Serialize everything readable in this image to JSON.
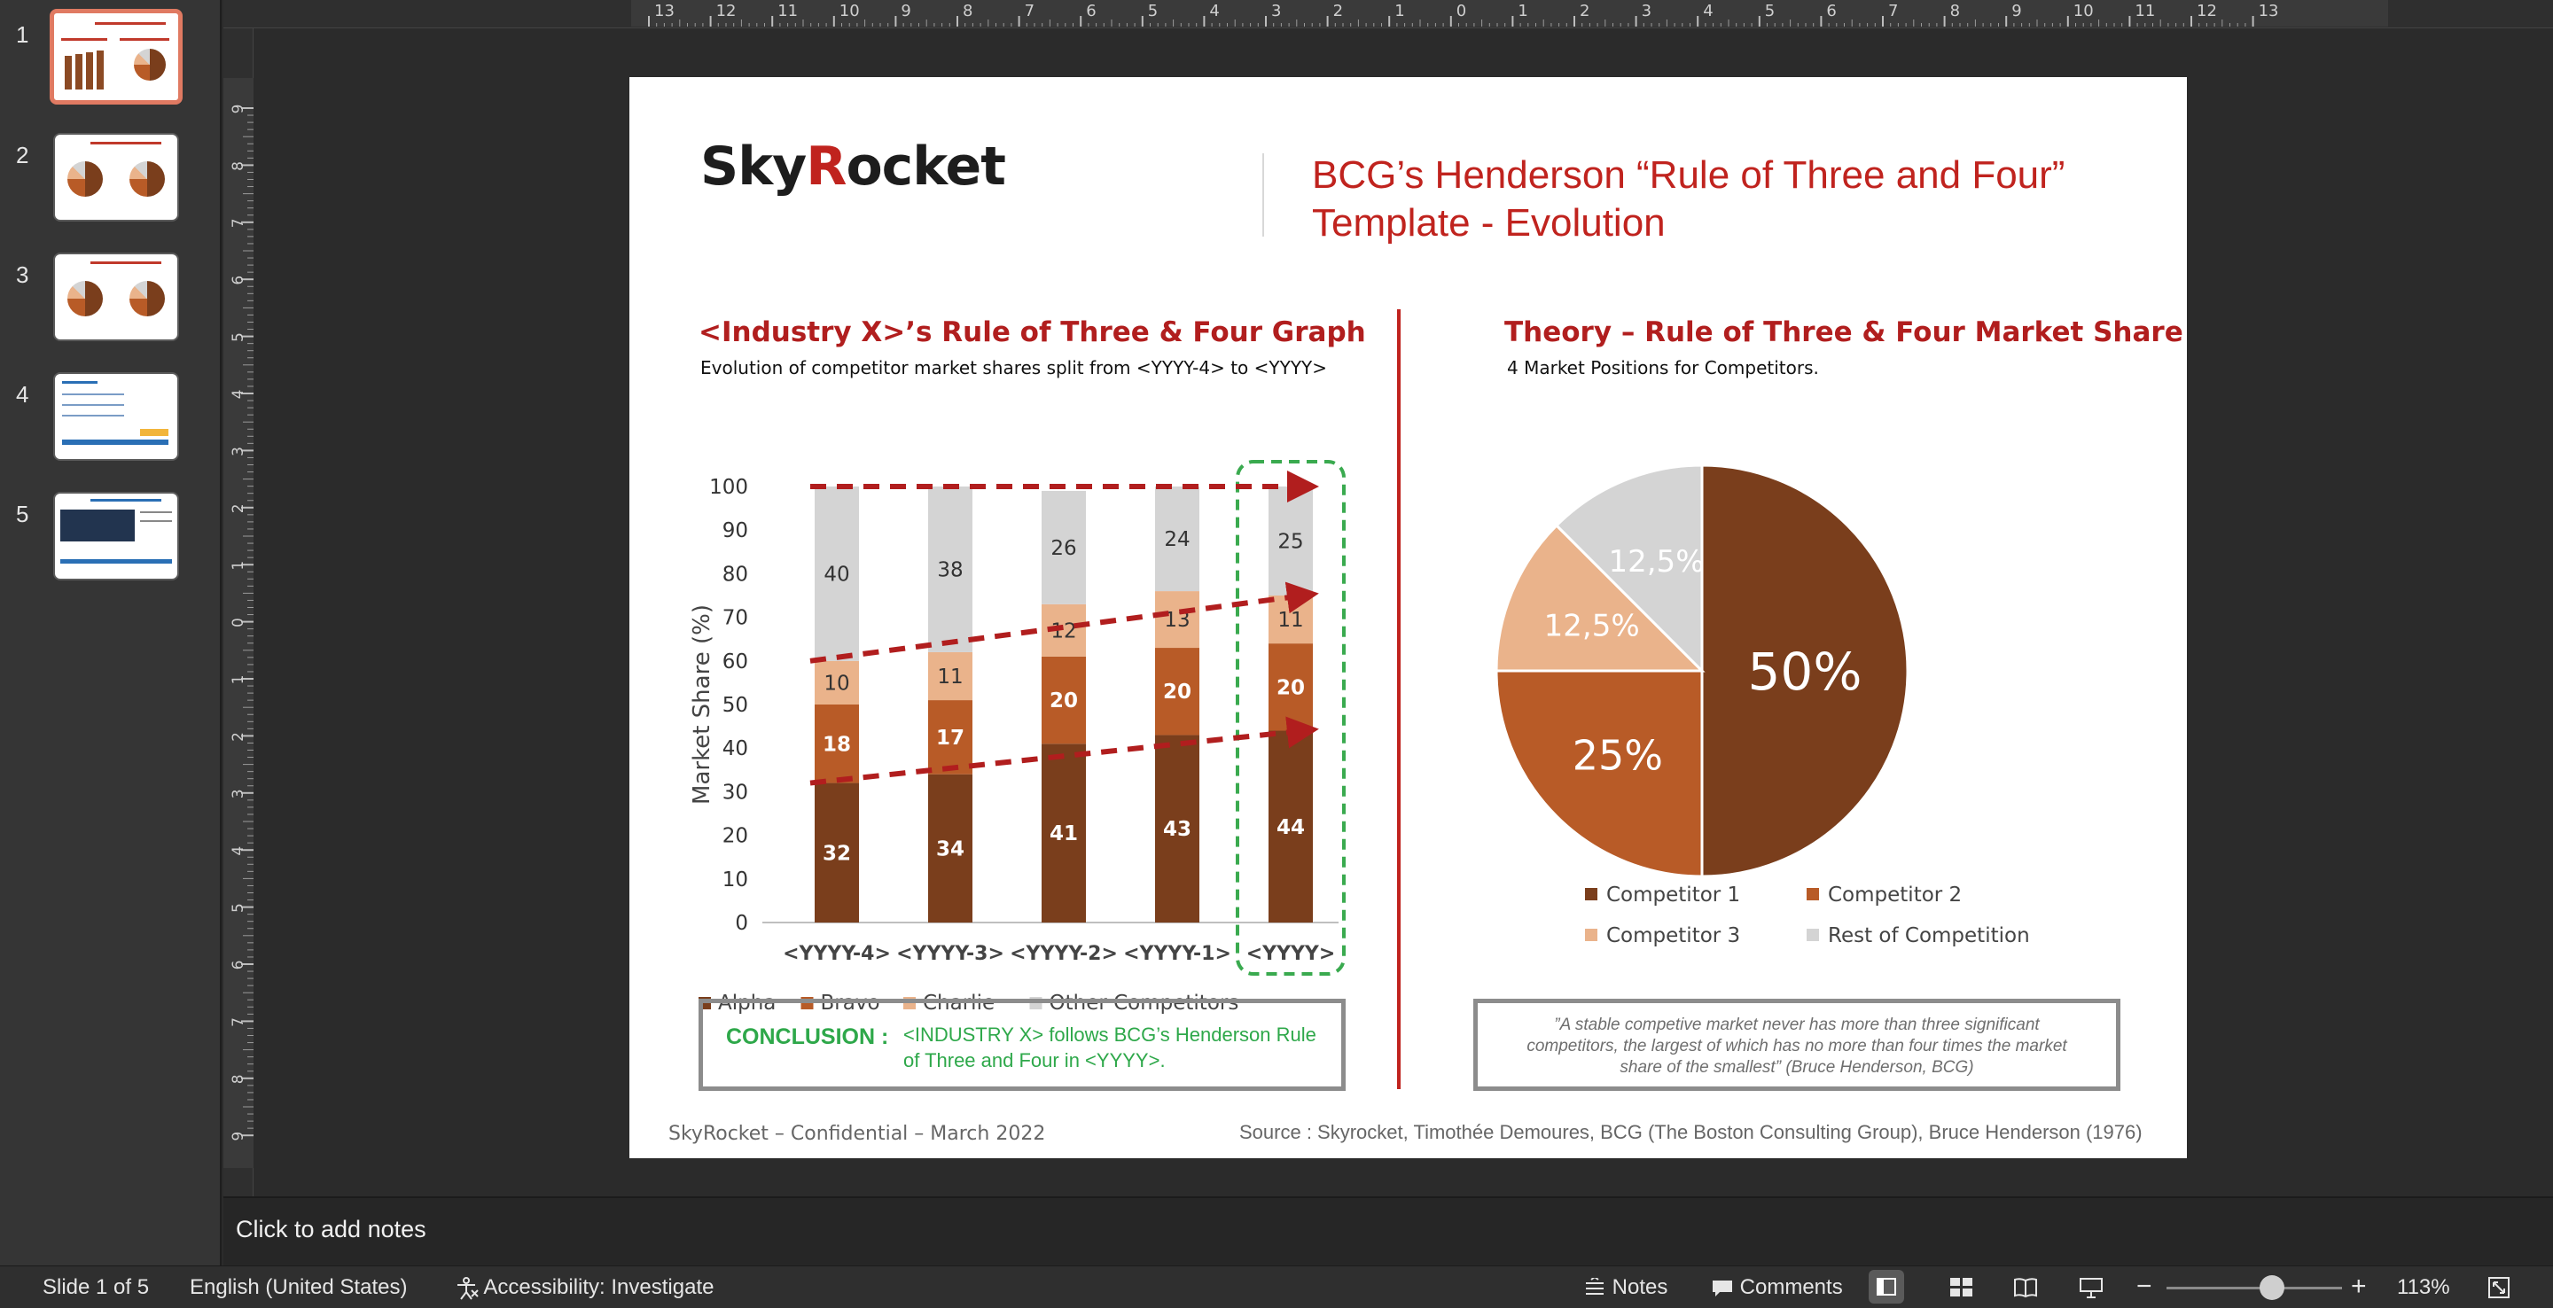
{
  "thumbnails": [
    {
      "number": "1",
      "selected": true
    },
    {
      "number": "2",
      "selected": false
    },
    {
      "number": "3",
      "selected": false
    },
    {
      "number": "4",
      "selected": false
    },
    {
      "number": "5",
      "selected": false
    }
  ],
  "ruler": {
    "top_labels": [
      "13",
      "12",
      "11",
      "10",
      "9",
      "8",
      "7",
      "6",
      "5",
      "4",
      "3",
      "2",
      "1",
      "0",
      "1",
      "2",
      "3",
      "4",
      "5",
      "6",
      "7",
      "8",
      "9",
      "10",
      "11",
      "12",
      "13"
    ],
    "left_labels": [
      "9",
      "8",
      "7",
      "6",
      "5",
      "4",
      "3",
      "2",
      "1",
      "0",
      "1",
      "2",
      "3",
      "4",
      "5",
      "6",
      "7",
      "8",
      "9"
    ]
  },
  "slide": {
    "logo": {
      "part1": "Sky",
      "part2": "R",
      "part3": "ocket"
    },
    "title": "BCG’s Henderson “Rule of Three and Four” Template - Evolution",
    "left_section": {
      "title": "<Industry X>’s Rule of Three & Four Graph",
      "subtitle": "Evolution of competitor market shares split from <YYYY-4> to <YYYY>"
    },
    "right_section": {
      "title": "Theory – Rule of Three & Four Market Share",
      "subtitle": "4 Market Positions for Competitors."
    },
    "conclusion": {
      "label": "CONCLUSION :",
      "text": "<INDUSTRY X> follows BCG’s Henderson Rule of Three and Four in <YYYY>."
    },
    "quote": "”A stable competive market never has more than three significant competitors, the largest of which has no more than four times the market share of the smallest” (Bruce Henderson, BCG)",
    "footer_left": "SkyRocket – Confidential – March 2022",
    "footer_right": "Source : Skyrocket, Timothée Demoures,  BCG (The Boston Consulting Group), Bruce Henderson (1976)"
  },
  "chart_data": [
    {
      "type": "bar",
      "stacked": true,
      "categories": [
        "<YYYY-4>",
        "<YYYY-3>",
        "<YYYY-2>",
        "<YYYY-1>",
        "<YYYY>"
      ],
      "series": [
        {
          "name": "Alpha",
          "values": [
            32,
            34,
            41,
            43,
            44
          ],
          "color": "#7a3e1c"
        },
        {
          "name": "Bravo",
          "values": [
            18,
            17,
            20,
            20,
            20
          ],
          "color": "#b85b27"
        },
        {
          "name": "Charlie",
          "values": [
            10,
            11,
            12,
            13,
            11
          ],
          "color": "#eab38b"
        },
        {
          "name": "Other Competitors",
          "values": [
            40,
            38,
            26,
            24,
            25
          ],
          "color": "#d4d4d4"
        }
      ],
      "ylabel": "Market Share (%)",
      "ylim": [
        0,
        100
      ],
      "yticks": [
        "0",
        "10",
        "20",
        "30",
        "40",
        "50",
        "60",
        "70",
        "80",
        "90",
        "100"
      ],
      "grid": false,
      "legend": "bottom",
      "highlight_category": "<YYYY>",
      "trend_arrow_color": "#b11e1e",
      "highlight_color": "#3aaa4f"
    },
    {
      "type": "pie",
      "labels": [
        "Competitor 1",
        "Competitor 2",
        "Competitor 3",
        "Rest of Competition"
      ],
      "values": [
        50,
        25,
        12.5,
        12.5
      ],
      "data_labels": [
        "50%",
        "25%",
        "12,5%",
        "12,5%"
      ],
      "colors": [
        "#7a3e1c",
        "#b85b27",
        "#eab38b",
        "#d4d4d4"
      ],
      "legend": "bottom"
    }
  ],
  "notes": {
    "placeholder": "Click to add notes"
  },
  "statusbar": {
    "slide_info": "Slide 1 of 5",
    "language": "English (United States)",
    "accessibility": "Accessibility: Investigate",
    "notes": "Notes",
    "comments": "Comments",
    "zoom": "113%",
    "zoom_level": 0.6
  }
}
